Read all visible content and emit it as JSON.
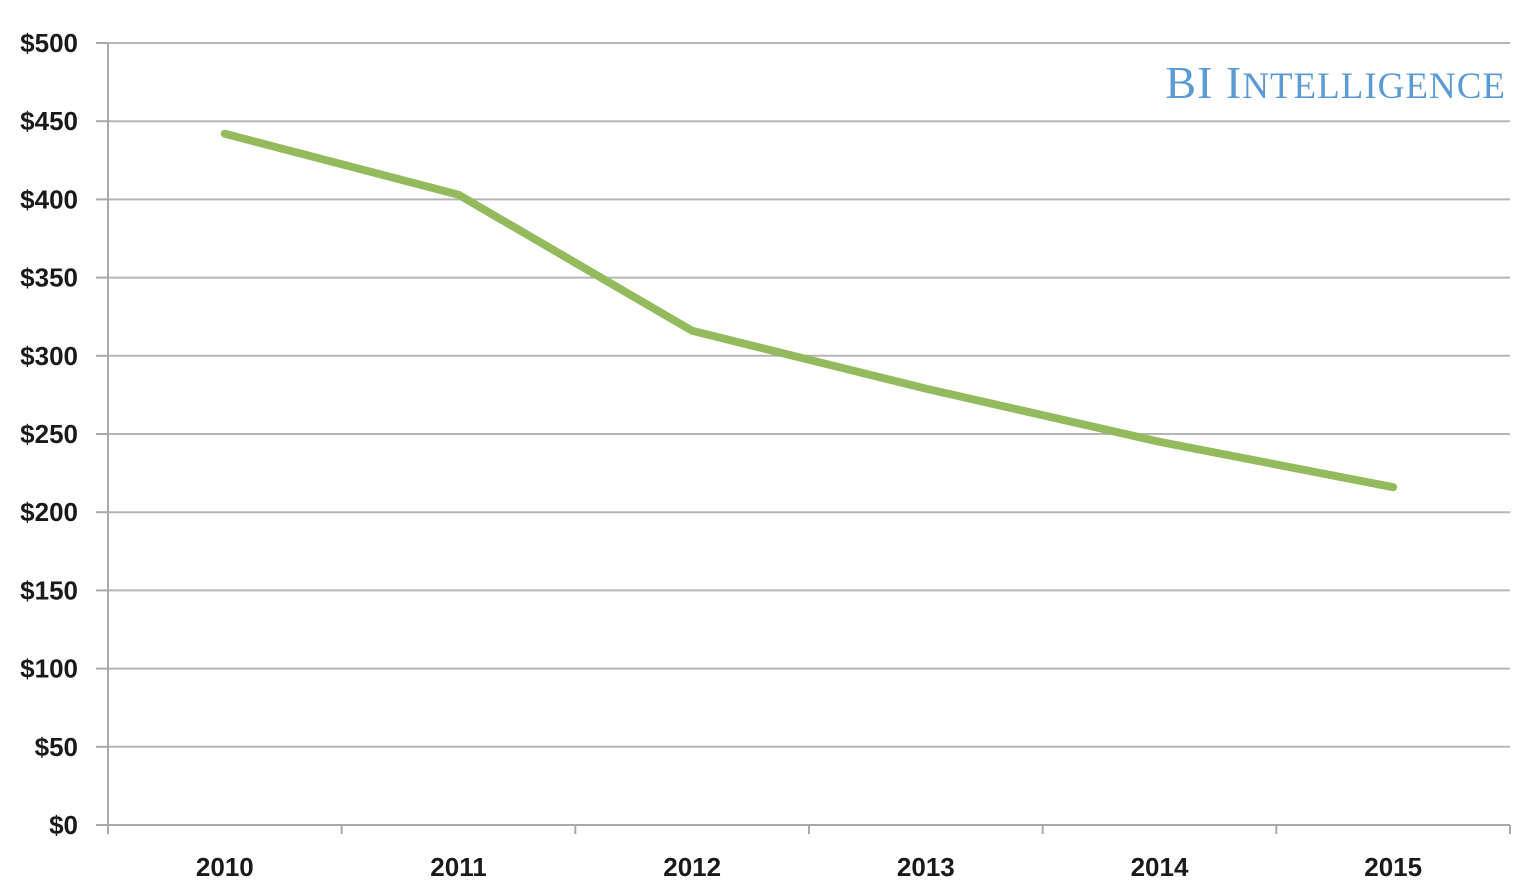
{
  "brand": {
    "big_first": "BI",
    "big_second": "I",
    "small_rest": "NTELLIGENCE",
    "color": "#5b9bd5"
  },
  "colors": {
    "line": "#93bb5e",
    "grid": "#b5b5b5",
    "axis": "#a9a9a9",
    "text": "#1a1a1a"
  },
  "chart_data": {
    "type": "line",
    "categories": [
      "2010",
      "2011",
      "2012",
      "2013",
      "2014",
      "2015"
    ],
    "series": [
      {
        "values": [
          442,
          403,
          316,
          279,
          245,
          216
        ]
      }
    ],
    "ylim": [
      0,
      500
    ],
    "yticks": [
      0,
      50,
      100,
      150,
      200,
      250,
      300,
      350,
      400,
      450,
      500
    ],
    "ytick_labels": [
      "$0",
      "$50",
      "$100",
      "$150",
      "$200",
      "$250",
      "$300",
      "$350",
      "$400",
      "$450",
      "$500"
    ],
    "grid": true,
    "legend": "none"
  }
}
